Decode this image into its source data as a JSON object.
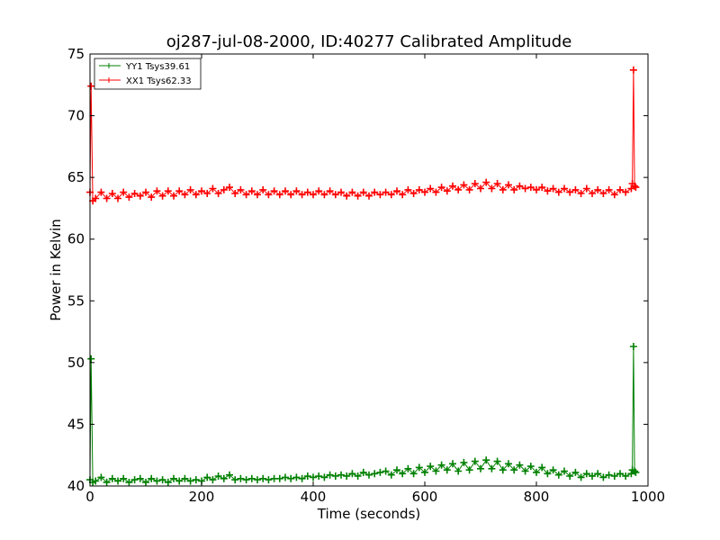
{
  "chart_data": {
    "type": "line",
    "title": "oj287-jul-08-2000, ID:40277 Calibrated Amplitude",
    "xlabel": "Time (seconds)",
    "ylabel": "Power in Kelvin",
    "xlim": [
      0,
      1000
    ],
    "ylim": [
      40,
      75
    ],
    "xticks": [
      0,
      200,
      400,
      600,
      800,
      1000
    ],
    "yticks": [
      40,
      45,
      50,
      55,
      60,
      65,
      70,
      75
    ],
    "grid": false,
    "legend_position": "top-left",
    "marker": "plus",
    "series": [
      {
        "name": "YY1 Tsys39.61",
        "color": "#008000",
        "x": [
          0,
          2,
          5,
          10,
          20,
          30,
          40,
          50,
          60,
          70,
          80,
          90,
          100,
          110,
          120,
          130,
          140,
          150,
          160,
          170,
          180,
          190,
          200,
          210,
          220,
          230,
          240,
          250,
          260,
          270,
          280,
          290,
          300,
          310,
          320,
          330,
          340,
          350,
          360,
          370,
          380,
          390,
          400,
          410,
          420,
          430,
          440,
          450,
          460,
          470,
          480,
          490,
          500,
          510,
          520,
          530,
          540,
          550,
          560,
          570,
          580,
          590,
          600,
          610,
          620,
          630,
          640,
          650,
          660,
          670,
          680,
          690,
          700,
          710,
          720,
          730,
          740,
          750,
          760,
          770,
          780,
          790,
          800,
          810,
          820,
          830,
          840,
          850,
          860,
          870,
          880,
          890,
          900,
          910,
          920,
          930,
          940,
          950,
          960,
          970,
          972,
          974,
          976,
          978
        ],
        "values": [
          40.5,
          50.3,
          40.3,
          40.4,
          40.7,
          40.3,
          40.6,
          40.4,
          40.6,
          40.3,
          40.5,
          40.6,
          40.3,
          40.6,
          40.4,
          40.5,
          40.3,
          40.6,
          40.4,
          40.6,
          40.4,
          40.5,
          40.4,
          40.7,
          40.5,
          40.8,
          40.6,
          40.9,
          40.5,
          40.6,
          40.5,
          40.6,
          40.5,
          40.6,
          40.5,
          40.6,
          40.6,
          40.7,
          40.6,
          40.7,
          40.6,
          40.8,
          40.7,
          40.8,
          40.7,
          40.9,
          40.8,
          40.9,
          40.8,
          41.0,
          40.8,
          41.1,
          40.9,
          41.0,
          41.1,
          41.2,
          40.9,
          41.3,
          41.0,
          41.4,
          41.0,
          41.5,
          41.1,
          41.6,
          41.2,
          41.7,
          41.3,
          41.8,
          41.2,
          41.9,
          41.3,
          42.0,
          41.4,
          42.1,
          41.4,
          42.0,
          41.3,
          41.8,
          41.3,
          41.7,
          41.2,
          41.6,
          41.1,
          41.5,
          41.0,
          41.3,
          40.9,
          41.2,
          40.8,
          41.1,
          40.7,
          41.0,
          40.8,
          41.0,
          40.7,
          40.9,
          40.8,
          41.0,
          40.8,
          41.0,
          41.3,
          51.3,
          41.2,
          41.1
        ]
      },
      {
        "name": "XX1 Tsys62.33",
        "color": "#ff0000",
        "x": [
          0,
          2,
          5,
          10,
          20,
          30,
          40,
          50,
          60,
          70,
          80,
          90,
          100,
          110,
          120,
          130,
          140,
          150,
          160,
          170,
          180,
          190,
          200,
          210,
          220,
          230,
          240,
          250,
          260,
          270,
          280,
          290,
          300,
          310,
          320,
          330,
          340,
          350,
          360,
          370,
          380,
          390,
          400,
          410,
          420,
          430,
          440,
          450,
          460,
          470,
          480,
          490,
          500,
          510,
          520,
          530,
          540,
          550,
          560,
          570,
          580,
          590,
          600,
          610,
          620,
          630,
          640,
          650,
          660,
          670,
          680,
          690,
          700,
          710,
          720,
          730,
          740,
          750,
          760,
          770,
          780,
          790,
          800,
          810,
          820,
          830,
          840,
          850,
          860,
          870,
          880,
          890,
          900,
          910,
          920,
          930,
          940,
          950,
          960,
          970,
          972,
          974,
          976,
          978
        ],
        "values": [
          63.8,
          72.4,
          63.1,
          63.3,
          63.8,
          63.3,
          63.7,
          63.3,
          63.8,
          63.4,
          63.7,
          63.5,
          63.8,
          63.4,
          63.9,
          63.5,
          63.9,
          63.5,
          63.9,
          63.6,
          64.0,
          63.6,
          63.9,
          63.7,
          64.1,
          63.7,
          64.0,
          64.2,
          63.7,
          64.0,
          63.6,
          63.9,
          63.6,
          64.0,
          63.6,
          63.9,
          63.6,
          63.9,
          63.6,
          63.9,
          63.6,
          63.8,
          63.6,
          63.9,
          63.6,
          63.9,
          63.6,
          63.8,
          63.5,
          63.8,
          63.5,
          63.8,
          63.5,
          63.8,
          63.6,
          63.8,
          63.6,
          63.9,
          63.6,
          64.0,
          63.7,
          64.0,
          63.8,
          64.1,
          63.8,
          64.2,
          63.9,
          64.3,
          64.0,
          64.4,
          64.0,
          64.5,
          64.1,
          64.6,
          64.1,
          64.5,
          64.0,
          64.4,
          64.0,
          64.3,
          64.1,
          64.2,
          64.0,
          64.2,
          63.9,
          64.1,
          63.8,
          64.1,
          63.8,
          64.0,
          63.7,
          64.1,
          63.7,
          64.0,
          63.7,
          64.0,
          63.6,
          64.0,
          63.8,
          64.1,
          64.5,
          73.7,
          64.3,
          64.2
        ]
      }
    ]
  }
}
